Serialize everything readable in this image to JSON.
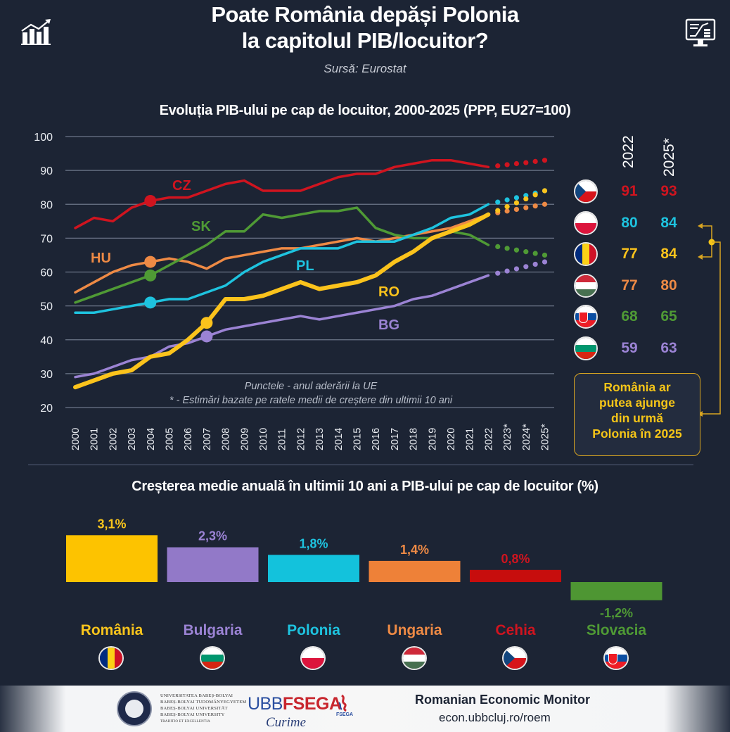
{
  "header": {
    "title_line1": "Poate România depăși Polonia",
    "title_line2": "la capitolul PIB/locuitor?",
    "source": "Sursă: Eurostat",
    "left_icon": "bar-chart-growth-icon",
    "right_icon": "monitor-report-icon"
  },
  "chart_data": [
    {
      "type": "line",
      "title": "Evoluția PIB-ului pe cap de locuitor, 2000-2025 (PPP, EU27=100)",
      "xlabel": "",
      "ylabel": "",
      "x": [
        "2000",
        "2001",
        "2002",
        "2003",
        "2004",
        "2005",
        "2006",
        "2007",
        "2008",
        "2009",
        "2010",
        "2011",
        "2012",
        "2013",
        "2014",
        "2015",
        "2016",
        "2017",
        "2018",
        "2019",
        "2020",
        "2021",
        "2022",
        "2023*",
        "2024*",
        "2025*"
      ],
      "ylim": [
        20,
        100
      ],
      "yticks": [
        100,
        90,
        80,
        70,
        60,
        50,
        40,
        30,
        20
      ],
      "grid": true,
      "estimated_from_index": 22,
      "notes": [
        "Punctele - anul aderării la UE",
        "* - Estimări bazate pe ratele medii de creștere din ultimii 10 ani"
      ],
      "series": [
        {
          "name": "CZ",
          "color": "#d0141f",
          "accession_year": "2004",
          "values": [
            73,
            76,
            75,
            79,
            81,
            82,
            82,
            84,
            86,
            87,
            84,
            84,
            84,
            86,
            88,
            89,
            89,
            91,
            92,
            93,
            93,
            92,
            91,
            91.7,
            92.3,
            93
          ]
        },
        {
          "name": "SK",
          "color": "#4f9a35",
          "accession_year": "2004",
          "values": [
            51,
            53,
            55,
            57,
            59,
            62,
            65,
            68,
            72,
            72,
            77,
            76,
            77,
            78,
            78,
            79,
            73,
            71,
            70,
            70,
            72,
            71,
            68,
            67,
            66,
            65
          ]
        },
        {
          "name": "HU",
          "color": "#ee8a45",
          "accession_year": "2004",
          "values": [
            54,
            57,
            60,
            62,
            63,
            64,
            63,
            61,
            64,
            65,
            66,
            67,
            67,
            68,
            69,
            70,
            69,
            70,
            71,
            72,
            73,
            75,
            77,
            78,
            79,
            80
          ]
        },
        {
          "name": "PL",
          "color": "#1ec3df",
          "accession_year": "2004",
          "values": [
            48,
            48,
            49,
            50,
            51,
            52,
            52,
            54,
            56,
            60,
            63,
            65,
            67,
            67,
            67,
            69,
            69,
            69,
            71,
            73,
            76,
            77,
            80,
            81.3,
            82.6,
            84
          ]
        },
        {
          "name": "RO",
          "color": "#fbc31c",
          "accession_year": "2007",
          "values": [
            26,
            28,
            30,
            31,
            35,
            36,
            40,
            45,
            52,
            52,
            53,
            55,
            57,
            55,
            56,
            57,
            59,
            63,
            66,
            70,
            72,
            74,
            77,
            79.3,
            81.6,
            84
          ]
        },
        {
          "name": "BG",
          "color": "#9b83d4",
          "accession_year": "2007",
          "values": [
            29,
            30,
            32,
            34,
            35,
            38,
            39,
            41,
            43,
            44,
            45,
            46,
            47,
            46,
            47,
            48,
            49,
            50,
            52,
            53,
            55,
            57,
            59,
            60.3,
            61.6,
            63
          ]
        }
      ],
      "series_labels": [
        {
          "name": "CZ",
          "text": "CZ"
        },
        {
          "name": "SK",
          "text": "SK"
        },
        {
          "name": "HU",
          "text": "HU"
        },
        {
          "name": "PL",
          "text": "PL"
        },
        {
          "name": "RO",
          "text": "RO"
        },
        {
          "name": "BG",
          "text": "BG"
        }
      ]
    },
    {
      "type": "bar",
      "title": "Creșterea medie anuală în ultimii 10 ani a PIB-ului pe cap de locuitor (%)",
      "categories": [
        "România",
        "Bulgaria",
        "Polonia",
        "Ungaria",
        "Cehia",
        "Slovacia"
      ],
      "values": [
        3.1,
        2.3,
        1.8,
        1.4,
        0.8,
        -1.2
      ],
      "value_labels": [
        "3,1%",
        "2,3%",
        "1,8%",
        "1,4%",
        "0,8%",
        "-1,2%"
      ],
      "colors": [
        "#fdc300",
        "#9279c8",
        "#13c2dc",
        "#ee8138",
        "#c70d0d",
        "#4e9633"
      ],
      "label_colors": [
        "#f9c51c",
        "#9b83d4",
        "#1ec3df",
        "#ee8a45",
        "#d0141f",
        "#4f9a35"
      ],
      "flags": [
        "ro",
        "bg",
        "pl",
        "hu",
        "cz",
        "sk"
      ],
      "xlabel": "",
      "ylabel": ""
    }
  ],
  "table": {
    "headers": [
      "2022",
      "2025*"
    ],
    "rows": [
      {
        "flag": "cz",
        "v2022": "91",
        "v2025": "93",
        "color": "#d0141f"
      },
      {
        "flag": "pl",
        "v2022": "80",
        "v2025": "84",
        "color": "#1ec3df"
      },
      {
        "flag": "ro",
        "v2022": "77",
        "v2025": "84",
        "color": "#fbc31c"
      },
      {
        "flag": "hu",
        "v2022": "77",
        "v2025": "80",
        "color": "#ee8a45"
      },
      {
        "flag": "sk",
        "v2022": "68",
        "v2025": "65",
        "color": "#4f9a35"
      },
      {
        "flag": "bg",
        "v2022": "59",
        "v2025": "63",
        "color": "#9b83d4"
      }
    ]
  },
  "callout": {
    "lines": [
      "România ar",
      "putea ajunge",
      "din urmă",
      "Polonia în 2025"
    ],
    "color": "#f5c518"
  },
  "footer": {
    "university_lines": [
      "UNIVERSITATEA BABEȘ-BOLYAI",
      "BABEȘ-BOLYAI TUDOMÁNYEGYETEM",
      "BABEȘ-BOLYAI UNIVERSITÄT",
      "BABEȘ-BOLYAI UNIVERSITY",
      "TRADITIO ET EXCELLENTIA"
    ],
    "fsega_ubb": "UBB",
    "fsega_name": "FSEGA",
    "fsega_signature": "Curime",
    "brand": "Romanian Economic Monitor",
    "url": "econ.ubbcluj.ro/roem"
  }
}
